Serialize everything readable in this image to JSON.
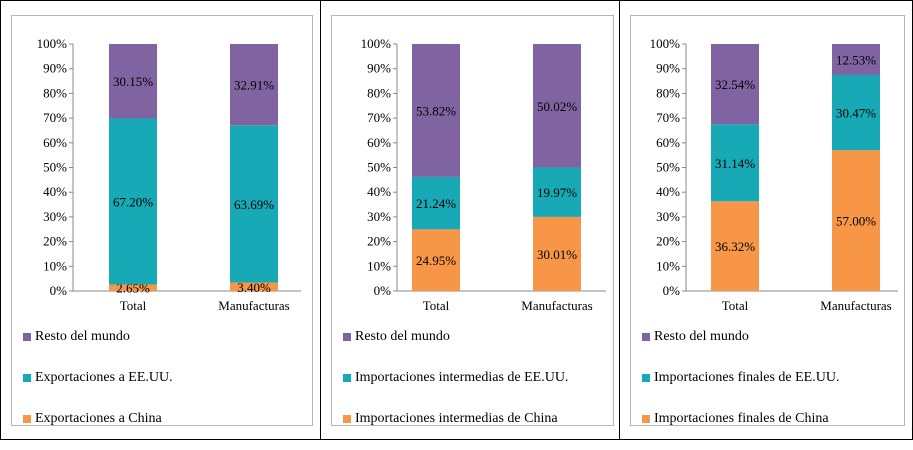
{
  "chart_data": [
    {
      "type": "bar",
      "stacked": true,
      "categories": [
        "Total",
        "Manufacturas"
      ],
      "yticks": [
        "0%",
        "10%",
        "20%",
        "30%",
        "40%",
        "50%",
        "60%",
        "70%",
        "80%",
        "90%",
        "100%"
      ],
      "ylim": [
        0,
        100
      ],
      "series": [
        {
          "name": "Exportaciones a China",
          "color": "#F79646",
          "values": [
            2.65,
            3.4
          ],
          "labels": [
            "2.65%",
            "3.40%"
          ]
        },
        {
          "name": "Exportaciones a EE.UU.",
          "color": "#18A9B6",
          "values": [
            67.2,
            63.69
          ],
          "labels": [
            "67.20%",
            "63.69%"
          ]
        },
        {
          "name": "Resto del mundo",
          "color": "#8064A2",
          "values": [
            30.15,
            32.91
          ],
          "labels": [
            "30.15%",
            "32.91%"
          ]
        }
      ]
    },
    {
      "type": "bar",
      "stacked": true,
      "categories": [
        "Total",
        "Manufacturas"
      ],
      "yticks": [
        "0%",
        "10%",
        "20%",
        "30%",
        "40%",
        "50%",
        "60%",
        "70%",
        "80%",
        "90%",
        "100%"
      ],
      "ylim": [
        0,
        100
      ],
      "series": [
        {
          "name": "Importaciones intermedias de China",
          "color": "#F79646",
          "values": [
            24.95,
            30.01
          ],
          "labels": [
            "24.95%",
            "30.01%"
          ]
        },
        {
          "name": "Importaciones intermedias de EE.UU.",
          "color": "#18A9B6",
          "values": [
            21.24,
            19.97
          ],
          "labels": [
            "21.24%",
            "19.97%"
          ]
        },
        {
          "name": "Resto del mundo",
          "color": "#8064A2",
          "values": [
            53.82,
            50.02
          ],
          "labels": [
            "53.82%",
            "50.02%"
          ]
        }
      ]
    },
    {
      "type": "bar",
      "stacked": true,
      "categories": [
        "Total",
        "Manufacturas"
      ],
      "yticks": [
        "0%",
        "10%",
        "20%",
        "30%",
        "40%",
        "50%",
        "60%",
        "70%",
        "80%",
        "90%",
        "100%"
      ],
      "ylim": [
        0,
        100
      ],
      "series": [
        {
          "name": "Importaciones finales de China",
          "color": "#F79646",
          "values": [
            36.32,
            57.0
          ],
          "labels": [
            "36.32%",
            "57.00%"
          ]
        },
        {
          "name": "Importaciones finales de EE.UU.",
          "color": "#18A9B6",
          "values": [
            31.14,
            30.47
          ],
          "labels": [
            "31.14%",
            "30.47%"
          ]
        },
        {
          "name": "Resto del mundo",
          "color": "#8064A2",
          "values": [
            32.54,
            12.53
          ],
          "labels": [
            "32.54%",
            "12.53%"
          ]
        }
      ]
    }
  ]
}
